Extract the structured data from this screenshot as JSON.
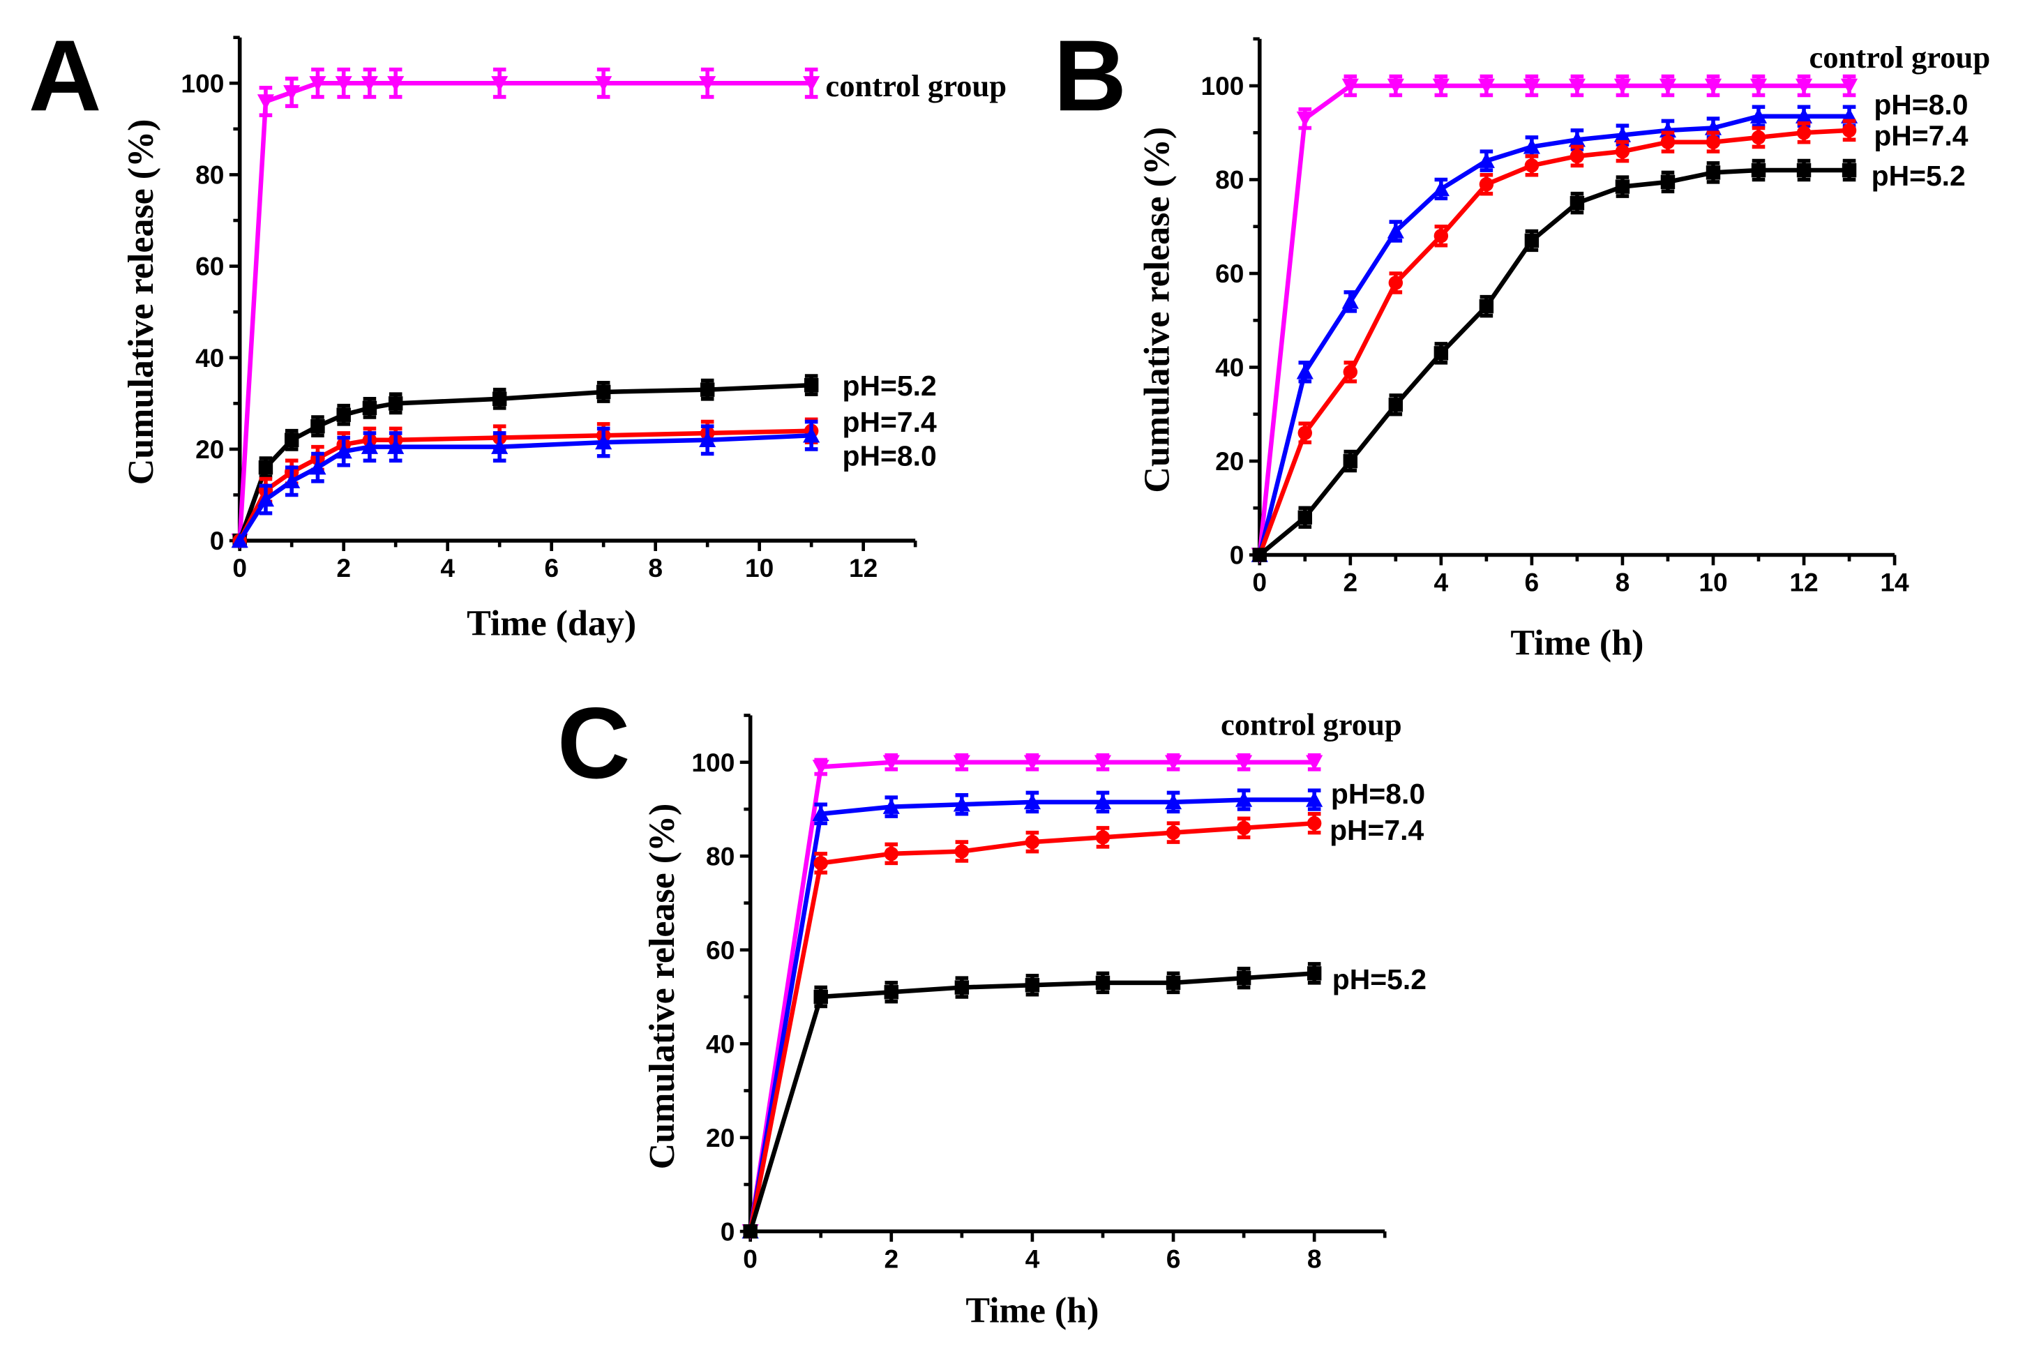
{
  "chart_data": [
    {
      "type": "line",
      "panel": "A",
      "xlabel": "Time (day)",
      "ylabel": "Cumulative release (%)",
      "xlim": [
        0,
        13
      ],
      "ylim": [
        0,
        110
      ],
      "xticks": [
        0,
        2,
        4,
        6,
        8,
        10,
        12
      ],
      "yticks": [
        0,
        20,
        40,
        60,
        80,
        100
      ],
      "x": [
        0,
        0.5,
        1,
        1.5,
        2,
        2.5,
        3,
        5,
        7,
        9,
        11
      ],
      "series": [
        {
          "name": "control group",
          "color": "#ff00ff",
          "marker": "triangle-down",
          "error": 3,
          "values": [
            0,
            96,
            98,
            100,
            100,
            100,
            100,
            100,
            100,
            100,
            100
          ]
        },
        {
          "name": "pH=5.2",
          "color": "#000000",
          "marker": "square",
          "error": 2,
          "values": [
            0,
            16,
            22,
            25,
            27.5,
            29,
            30,
            31,
            32.5,
            33,
            34
          ]
        },
        {
          "name": "pH=7.4",
          "color": "#ff0000",
          "marker": "circle",
          "error": 2.5,
          "values": [
            0,
            11,
            15,
            18,
            21,
            22,
            22,
            22.5,
            23,
            23.5,
            24
          ]
        },
        {
          "name": "pH=8.0",
          "color": "#0000ff",
          "marker": "triangle-up",
          "error": 3,
          "values": [
            0,
            9,
            13,
            16,
            19.5,
            20.5,
            20.5,
            20.5,
            21.5,
            22,
            23
          ]
        }
      ]
    },
    {
      "type": "line",
      "panel": "B",
      "xlabel": "Time (h)",
      "ylabel": "Cumulative release (%)",
      "xlim": [
        0,
        14
      ],
      "ylim": [
        0,
        110
      ],
      "xticks": [
        0,
        2,
        4,
        6,
        8,
        10,
        12,
        14
      ],
      "yticks": [
        0,
        20,
        40,
        60,
        80,
        100
      ],
      "x": [
        0,
        1,
        2,
        3,
        4,
        5,
        6,
        7,
        8,
        9,
        10,
        11,
        12,
        13
      ],
      "series": [
        {
          "name": "control group",
          "color": "#ff00ff",
          "marker": "triangle-down",
          "error": 2,
          "values": [
            0,
            93,
            100,
            100,
            100,
            100,
            100,
            100,
            100,
            100,
            100,
            100,
            100,
            100
          ]
        },
        {
          "name": "pH=8.0",
          "color": "#0000ff",
          "marker": "triangle-up",
          "error": 2,
          "values": [
            0,
            39,
            54,
            69,
            78,
            84,
            87,
            88.5,
            89.5,
            90.5,
            91,
            93.5,
            93.5,
            93.5
          ]
        },
        {
          "name": "pH=7.4",
          "color": "#ff0000",
          "marker": "circle",
          "error": 2,
          "values": [
            0,
            26,
            39,
            58,
            68,
            79,
            83,
            85,
            86,
            88,
            88,
            89,
            90,
            90.5
          ]
        },
        {
          "name": "pH=5.2",
          "color": "#000000",
          "marker": "square",
          "error": 2,
          "values": [
            0,
            8,
            20,
            32,
            43,
            53,
            67,
            75,
            78.5,
            79.5,
            81.5,
            82,
            82,
            82
          ]
        }
      ]
    },
    {
      "type": "line",
      "panel": "C",
      "xlabel": "Time (h)",
      "ylabel": "Cumulative release (%)",
      "xlim": [
        0,
        9
      ],
      "ylim": [
        0,
        110
      ],
      "xticks": [
        0,
        2,
        4,
        6,
        8
      ],
      "yticks": [
        0,
        20,
        40,
        60,
        80,
        100
      ],
      "x": [
        0,
        1,
        2,
        3,
        4,
        5,
        6,
        7,
        8
      ],
      "series": [
        {
          "name": "control group",
          "color": "#ff00ff",
          "marker": "triangle-down",
          "error": 1.5,
          "values": [
            0,
            99,
            100,
            100,
            100,
            100,
            100,
            100,
            100
          ]
        },
        {
          "name": "pH=8.0",
          "color": "#0000ff",
          "marker": "triangle-up",
          "error": 2,
          "values": [
            0,
            89,
            90.5,
            91,
            91.5,
            91.5,
            91.5,
            92,
            92
          ]
        },
        {
          "name": "pH=7.4",
          "color": "#ff0000",
          "marker": "circle",
          "error": 2,
          "values": [
            0,
            78.5,
            80.5,
            81,
            83,
            84,
            85,
            86,
            87
          ]
        },
        {
          "name": "pH=5.2",
          "color": "#000000",
          "marker": "square",
          "error": 2,
          "values": [
            0,
            50,
            51,
            52,
            52.5,
            53,
            53,
            54,
            55
          ]
        }
      ]
    }
  ]
}
